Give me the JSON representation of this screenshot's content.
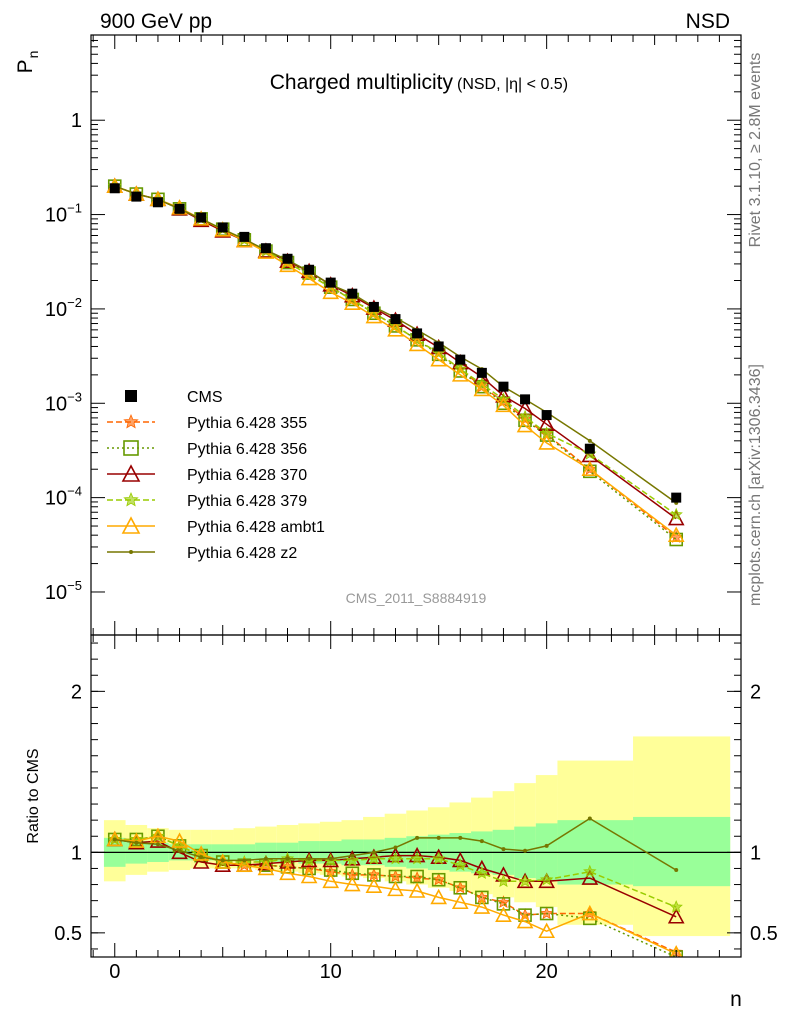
{
  "header": {
    "left_label": "900 GeV pp",
    "right_label": "NSD",
    "side_label_top": "Rivet 3.1.10, ≥ 2.8M events",
    "side_label_bottom": "mcplots.cern.ch [arXiv:1306.3436]"
  },
  "chart_data": [
    {
      "type": "line",
      "title": "Charged multiplicity",
      "subtitle": "(NSD, |η| < 0.5)",
      "ylabel": "P",
      "ylabel_sub": "n",
      "xlabel": "n",
      "yscale": "log",
      "ylim": [
        3.5e-06,
        8
      ],
      "xlim": [
        -1.1,
        29
      ],
      "yticks": [
        {
          "value": 1,
          "base": "1",
          "exp": ""
        },
        {
          "value": 0.1,
          "base": "10",
          "exp": "−1"
        },
        {
          "value": 0.01,
          "base": "10",
          "exp": "−2"
        },
        {
          "value": 0.001,
          "base": "10",
          "exp": "−3"
        },
        {
          "value": 0.0001,
          "base": "10",
          "exp": "−4"
        },
        {
          "value": 1e-05,
          "base": "10",
          "exp": "−5"
        }
      ],
      "watermark": "CMS_2011_S8884919",
      "legend_position": "left",
      "data": {
        "name": "CMS",
        "x": [
          0,
          1,
          2,
          3,
          4,
          5,
          6,
          7,
          8,
          9,
          10,
          11,
          12,
          13,
          14,
          15,
          16,
          17,
          18,
          19,
          20,
          22,
          26
        ],
        "y": [
          0.19,
          0.155,
          0.135,
          0.115,
          0.093,
          0.073,
          0.058,
          0.044,
          0.034,
          0.026,
          0.019,
          0.0145,
          0.0105,
          0.0078,
          0.0055,
          0.004,
          0.0029,
          0.0021,
          0.0015,
          0.0011,
          0.00075,
          0.00033,
          0.0001
        ]
      },
      "series": [
        {
          "name": "Pythia 6.428 355",
          "color": "#ff6600",
          "dash": "6,3",
          "marker": "star",
          "y": [
            0.2,
            0.165,
            0.145,
            0.115,
            0.09,
            0.07,
            0.054,
            0.041,
            0.031,
            0.023,
            0.017,
            0.0125,
            0.009,
            0.0066,
            0.0047,
            0.0034,
            0.0023,
            0.0015,
            0.00105,
            0.00068,
            0.00047,
            0.0002,
            3.8e-05
          ]
        },
        {
          "name": "Pythia 6.428 356",
          "color": "#669900",
          "dash": "2,3",
          "marker": "square",
          "y": [
            0.2,
            0.165,
            0.145,
            0.115,
            0.09,
            0.07,
            0.054,
            0.041,
            0.031,
            0.024,
            0.017,
            0.0126,
            0.009,
            0.0066,
            0.0047,
            0.0033,
            0.0022,
            0.0015,
            0.001,
            0.00066,
            0.00046,
            0.00019,
            3.6e-05
          ]
        },
        {
          "name": "Pythia 6.428 370",
          "color": "#990000",
          "dash": "",
          "marker": "triangle",
          "y": [
            0.2,
            0.165,
            0.145,
            0.115,
            0.087,
            0.067,
            0.053,
            0.041,
            0.032,
            0.025,
            0.018,
            0.0138,
            0.0102,
            0.0076,
            0.0054,
            0.0039,
            0.0027,
            0.0019,
            0.0012,
            0.00088,
            0.0006,
            0.00028,
            6e-05
          ]
        },
        {
          "name": "Pythia 6.428 379",
          "color": "#99cc00",
          "dash": "6,3",
          "marker": "star",
          "y": [
            0.2,
            0.165,
            0.145,
            0.115,
            0.09,
            0.07,
            0.054,
            0.041,
            0.031,
            0.023,
            0.017,
            0.0125,
            0.009,
            0.0066,
            0.0047,
            0.0034,
            0.0023,
            0.0016,
            0.0011,
            0.00072,
            0.00048,
            0.00029,
            6.6e-05
          ]
        },
        {
          "name": "Pythia 6.428 ambt1",
          "color": "#ffaa00",
          "dash": "",
          "marker": "triangle",
          "y": [
            0.2,
            0.165,
            0.145,
            0.118,
            0.09,
            0.069,
            0.053,
            0.04,
            0.029,
            0.021,
            0.015,
            0.0115,
            0.0083,
            0.006,
            0.0042,
            0.0029,
            0.002,
            0.0014,
            0.00095,
            0.00058,
            0.00038,
            0.0002,
            4e-05
          ]
        },
        {
          "name": "Pythia 6.428 z2",
          "color": "#777700",
          "dash": "",
          "marker": "dot",
          "y": [
            0.2,
            0.165,
            0.145,
            0.115,
            0.09,
            0.07,
            0.055,
            0.042,
            0.033,
            0.025,
            0.018,
            0.0145,
            0.0105,
            0.0081,
            0.006,
            0.0044,
            0.0031,
            0.0023,
            0.0015,
            0.0011,
            0.0008,
            0.0004,
            8.8e-05
          ]
        }
      ]
    },
    {
      "type": "line",
      "ylabel": "Ratio to CMS",
      "ylim": [
        0.35,
        2.35
      ],
      "xlim": [
        -1.1,
        29
      ],
      "yticks": [
        {
          "value": 0.5,
          "label": "0.5"
        },
        {
          "value": 1,
          "label": "1"
        },
        {
          "value": 2,
          "label": "2"
        }
      ],
      "xticks": [
        {
          "value": 0,
          "label": "0"
        },
        {
          "value": 10,
          "label": "10"
        },
        {
          "value": 20,
          "label": "20"
        }
      ],
      "bands": {
        "bin_edges": [
          -0.5,
          0.5,
          1.5,
          2.5,
          3.5,
          4.5,
          5.5,
          6.5,
          7.5,
          8.5,
          9.5,
          10.5,
          11.5,
          12.5,
          13.5,
          14.5,
          15.5,
          16.5,
          17.5,
          18.5,
          19.5,
          20.5,
          24,
          28.5
        ],
        "inner": {
          "color": "#99ff99",
          "lo": [
            0.91,
            0.93,
            0.94,
            0.95,
            0.95,
            0.95,
            0.95,
            0.94,
            0.94,
            0.93,
            0.93,
            0.92,
            0.92,
            0.91,
            0.9,
            0.89,
            0.88,
            0.87,
            0.86,
            0.84,
            0.82,
            0.8,
            0.79
          ],
          "hi": [
            1.09,
            1.07,
            1.06,
            1.05,
            1.05,
            1.05,
            1.05,
            1.06,
            1.06,
            1.07,
            1.07,
            1.08,
            1.08,
            1.09,
            1.1,
            1.11,
            1.12,
            1.13,
            1.14,
            1.16,
            1.18,
            1.2,
            1.22
          ]
        },
        "outer": {
          "color": "#ffff99",
          "lo": [
            0.82,
            0.86,
            0.88,
            0.89,
            0.9,
            0.9,
            0.9,
            0.89,
            0.88,
            0.87,
            0.86,
            0.85,
            0.84,
            0.82,
            0.8,
            0.78,
            0.76,
            0.74,
            0.72,
            0.69,
            0.66,
            0.55,
            0.48
          ],
          "hi": [
            1.2,
            1.17,
            1.15,
            1.14,
            1.14,
            1.14,
            1.15,
            1.16,
            1.17,
            1.18,
            1.19,
            1.2,
            1.22,
            1.24,
            1.26,
            1.28,
            1.31,
            1.34,
            1.38,
            1.43,
            1.48,
            1.57,
            1.72
          ]
        }
      },
      "x": [
        0,
        1,
        2,
        3,
        4,
        5,
        6,
        7,
        8,
        9,
        10,
        11,
        12,
        13,
        14,
        15,
        16,
        17,
        18,
        19,
        20,
        22,
        26
      ],
      "series": [
        {
          "name": "Pythia 6.428 355",
          "y": [
            1.08,
            1.08,
            1.1,
            1.04,
            0.98,
            0.94,
            0.92,
            0.92,
            0.91,
            0.9,
            0.88,
            0.86,
            0.86,
            0.85,
            0.84,
            0.83,
            0.78,
            0.72,
            0.69,
            0.61,
            0.62,
            0.62,
            0.38
          ]
        },
        {
          "name": "Pythia 6.428 356",
          "y": [
            1.08,
            1.08,
            1.1,
            1.04,
            0.98,
            0.94,
            0.92,
            0.92,
            0.91,
            0.9,
            0.89,
            0.87,
            0.86,
            0.85,
            0.85,
            0.83,
            0.78,
            0.72,
            0.68,
            0.61,
            0.62,
            0.59,
            0.35
          ]
        },
        {
          "name": "Pythia 6.428 370",
          "y": [
            1.08,
            1.06,
            1.07,
            1.0,
            0.94,
            0.92,
            0.92,
            0.93,
            0.94,
            0.95,
            0.95,
            0.96,
            0.97,
            0.98,
            0.98,
            0.97,
            0.95,
            0.9,
            0.86,
            0.82,
            0.82,
            0.84,
            0.6
          ]
        },
        {
          "name": "Pythia 6.428 379",
          "y": [
            1.08,
            1.08,
            1.1,
            1.04,
            0.98,
            0.94,
            0.94,
            0.94,
            0.96,
            0.95,
            0.95,
            0.95,
            0.96,
            0.96,
            0.96,
            0.96,
            0.92,
            0.87,
            0.82,
            0.82,
            0.83,
            0.88,
            0.66
          ]
        },
        {
          "name": "Pythia 6.428 ambt1",
          "y": [
            1.08,
            1.07,
            1.1,
            1.07,
            0.99,
            0.94,
            0.92,
            0.9,
            0.87,
            0.85,
            0.82,
            0.8,
            0.79,
            0.77,
            0.76,
            0.72,
            0.69,
            0.66,
            0.61,
            0.57,
            0.51,
            0.62,
            0.37
          ]
        },
        {
          "name": "Pythia 6.428 z2",
          "y": [
            1.08,
            1.06,
            1.05,
            1.01,
            0.97,
            0.95,
            0.95,
            0.96,
            0.96,
            0.96,
            0.96,
            0.98,
            1.0,
            1.03,
            1.09,
            1.09,
            1.09,
            1.07,
            1.02,
            1.01,
            1.04,
            1.21,
            0.89
          ]
        }
      ]
    }
  ]
}
